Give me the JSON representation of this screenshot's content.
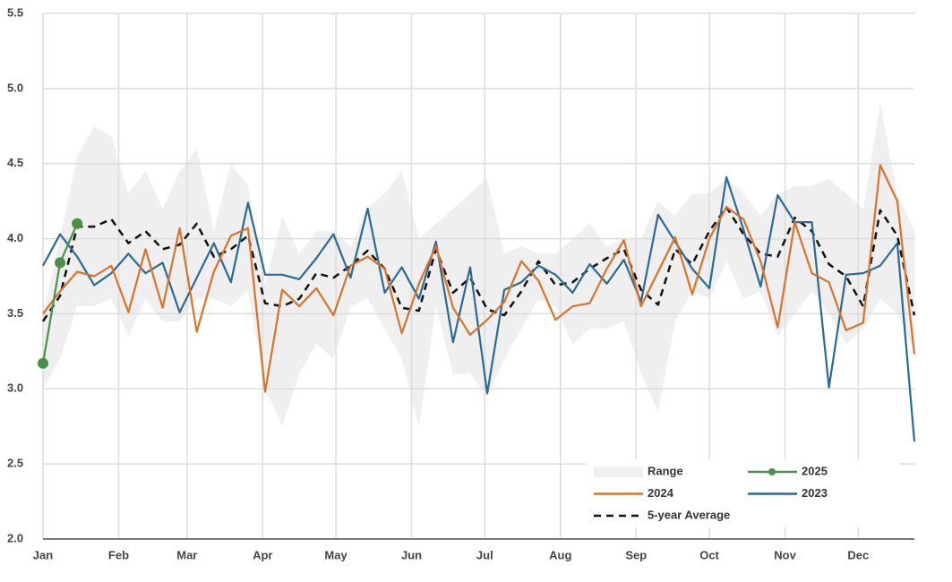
{
  "chart_data": {
    "type": "line",
    "x": [
      0,
      7,
      14,
      21,
      28,
      35,
      42,
      49,
      56,
      63,
      70,
      77,
      84,
      91,
      98,
      105,
      112,
      119,
      126,
      133,
      140,
      147,
      154,
      161,
      168,
      175,
      182,
      189,
      196,
      203,
      210,
      217,
      224,
      231,
      238,
      245,
      252,
      259,
      266,
      273,
      280,
      287,
      294,
      301,
      308,
      315,
      322,
      329,
      336,
      343,
      350,
      357
    ],
    "xlim": [
      0,
      357
    ],
    "xticks": [
      {
        "value": 0,
        "label": "Jan"
      },
      {
        "value": 31,
        "label": "Feb"
      },
      {
        "value": 59,
        "label": "Mar"
      },
      {
        "value": 90,
        "label": "Apr"
      },
      {
        "value": 120,
        "label": "May"
      },
      {
        "value": 151,
        "label": "Jun"
      },
      {
        "value": 181,
        "label": "Jul"
      },
      {
        "value": 212,
        "label": "Aug"
      },
      {
        "value": 243,
        "label": "Sep"
      },
      {
        "value": 273,
        "label": "Oct"
      },
      {
        "value": 304,
        "label": "Nov"
      },
      {
        "value": 334,
        "label": "Dec"
      }
    ],
    "ylim": [
      2.0,
      5.5
    ],
    "yticks": [
      {
        "value": 2,
        "label": "2.0"
      },
      2.5,
      {
        "value": 3,
        "label": "3.0"
      },
      3.5,
      {
        "value": 4,
        "label": "4.0"
      },
      4.5,
      {
        "value": 5,
        "label": "5.0"
      },
      5.5
    ],
    "grid": true,
    "legend": "lower right",
    "range": {
      "name": "Range",
      "color": "#efefef",
      "upper": [
        3.5,
        4.0,
        4.55,
        4.75,
        4.68,
        4.3,
        4.45,
        4.2,
        4.45,
        4.6,
        4.05,
        4.5,
        4.35,
        3.7,
        4.15,
        3.9,
        4.05,
        4.05,
        3.95,
        4.2,
        4.3,
        4.45,
        4.0,
        4.1,
        4.2,
        4.3,
        4.4,
        3.9,
        3.95,
        3.9,
        3.9,
        4.0,
        4.1,
        3.95,
        4.0,
        4.0,
        4.25,
        4.15,
        4.3,
        4.3,
        4.4,
        4.3,
        4.15,
        4.3,
        4.35,
        4.35,
        4.4,
        4.3,
        4.2,
        4.9,
        4.3,
        4.05
      ],
      "lower": [
        3.0,
        3.2,
        3.55,
        3.55,
        3.6,
        3.35,
        3.6,
        3.45,
        3.45,
        3.6,
        3.6,
        3.55,
        3.65,
        3.0,
        2.75,
        3.1,
        3.3,
        3.2,
        3.55,
        3.6,
        3.4,
        3.2,
        2.75,
        3.55,
        3.1,
        3.1,
        2.95,
        3.2,
        3.4,
        3.6,
        3.55,
        3.3,
        3.4,
        3.4,
        3.45,
        3.1,
        2.85,
        3.45,
        3.65,
        3.6,
        3.85,
        3.6,
        3.65,
        3.35,
        3.5,
        3.65,
        3.5,
        3.3,
        3.4,
        3.6,
        3.5,
        3.25
      ]
    },
    "series": [
      {
        "name": "2025",
        "color": "#4a8f4a",
        "markers": true,
        "values": [
          3.17,
          3.84,
          4.1,
          null,
          null,
          null,
          null,
          null,
          null,
          null,
          null,
          null,
          null,
          null,
          null,
          null,
          null,
          null,
          null,
          null,
          null,
          null,
          null,
          null,
          null,
          null,
          null,
          null,
          null,
          null,
          null,
          null,
          null,
          null,
          null,
          null,
          null,
          null,
          null,
          null,
          null,
          null,
          null,
          null,
          null,
          null,
          null,
          null,
          null,
          null,
          null,
          null
        ]
      },
      {
        "name": "2024",
        "color": "#d9732b",
        "values": [
          3.5,
          3.65,
          3.78,
          3.75,
          3.82,
          3.51,
          3.93,
          3.54,
          4.07,
          3.38,
          3.78,
          4.02,
          4.07,
          2.98,
          3.66,
          3.55,
          3.67,
          3.49,
          3.82,
          3.88,
          3.8,
          3.37,
          3.7,
          3.95,
          3.54,
          3.36,
          3.46,
          3.58,
          3.85,
          3.72,
          3.46,
          3.55,
          3.57,
          3.8,
          3.99,
          3.55,
          3.78,
          4.01,
          3.63,
          4.0,
          4.21,
          4.13,
          3.85,
          3.41,
          4.11,
          3.77,
          3.71,
          3.39,
          3.44,
          4.49,
          4.25,
          3.23
        ]
      },
      {
        "name": "2023",
        "color": "#2a6a94",
        "values": [
          3.82,
          4.03,
          3.88,
          3.69,
          3.77,
          3.9,
          3.77,
          3.84,
          3.51,
          3.74,
          3.97,
          3.71,
          4.24,
          3.76,
          3.76,
          3.73,
          3.87,
          4.03,
          3.74,
          4.2,
          3.64,
          3.81,
          3.6,
          3.98,
          3.31,
          3.81,
          2.97,
          3.66,
          3.71,
          3.82,
          3.76,
          3.64,
          3.83,
          3.7,
          3.86,
          3.58,
          4.16,
          3.98,
          3.8,
          3.67,
          4.41,
          4.06,
          3.68,
          4.29,
          4.11,
          4.11,
          3.01,
          3.76,
          3.77,
          3.82,
          3.97,
          2.65
        ]
      },
      {
        "name": "5-year Average",
        "color": "#111111",
        "dash": true,
        "values": [
          3.45,
          3.62,
          4.08,
          4.08,
          4.13,
          3.97,
          4.05,
          3.93,
          3.96,
          4.1,
          3.88,
          3.93,
          4.02,
          3.57,
          3.55,
          3.6,
          3.77,
          3.74,
          3.82,
          3.92,
          3.8,
          3.54,
          3.52,
          3.93,
          3.64,
          3.74,
          3.53,
          3.49,
          3.65,
          3.85,
          3.69,
          3.71,
          3.8,
          3.87,
          3.93,
          3.66,
          3.56,
          3.93,
          3.83,
          4.05,
          4.21,
          4.03,
          3.9,
          3.88,
          4.14,
          4.05,
          3.83,
          3.75,
          3.55,
          4.19,
          4.02,
          3.49
        ]
      }
    ]
  }
}
